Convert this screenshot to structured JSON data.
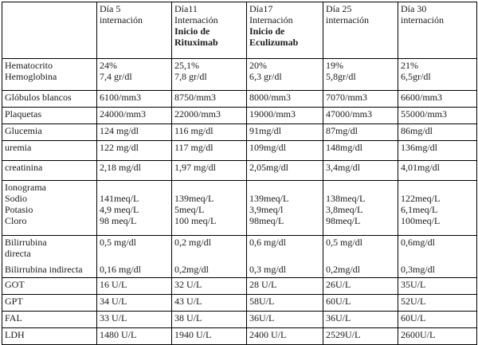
{
  "header": {
    "c1": [
      "Día 5",
      "internación"
    ],
    "c2": [
      "Día11",
      "Internación"
    ],
    "c2_bold": [
      "Inicio de",
      "Rituximab"
    ],
    "c3": [
      "Día17",
      "Internación"
    ],
    "c3_bold": [
      "Inicio de",
      "Eculizumab"
    ],
    "c4": [
      "Día 25",
      "internación"
    ],
    "c5": [
      "Día 30",
      "internación"
    ]
  },
  "rows": {
    "hto_hb": {
      "labels": [
        "Hematocrito",
        "Hemoglobina"
      ],
      "c1": [
        "24%",
        "7,4 gr/dl"
      ],
      "c2": [
        "25,1%",
        "7,8 gr/dl"
      ],
      "c3": [
        "20%",
        "6,3 gr/dl"
      ],
      "c4": [
        "19%",
        "5,8gr/dl"
      ],
      "c5": [
        "21%",
        "6,5gr/dl"
      ]
    },
    "gb": {
      "label": "Glóbulos blancos",
      "values": [
        "6100/mm3",
        "8750/mm3",
        "8000/mm3",
        "7070/mm3",
        "6600/mm3"
      ]
    },
    "plaq": {
      "label": "Plaquetas",
      "values": [
        "24000/mm3",
        "22000/mm3",
        "19000/mm3",
        "47000/mm3",
        "55000/mm3"
      ]
    },
    "glu": {
      "label": "Glucemia",
      "values": [
        "124 mg/dl",
        "116 mg/dl",
        "91mg/dl",
        "87mg/dl",
        "86mg/dl"
      ]
    },
    "urea": {
      "label": "uremia",
      "values": [
        "122 mg/dl",
        "117 mg/dl",
        "109mg/dl",
        "148mg/dl",
        "136mg/dl"
      ]
    },
    "crea": {
      "label": "creatinina",
      "values": [
        "2,18 mg/dl",
        "1,97 mg/dl",
        "2,05mg/dl",
        "3,4mg/dl",
        "4,01mg/dl"
      ]
    },
    "iono": {
      "labels": [
        "Ionograma",
        "Sodio",
        "Potasio",
        "Cloro"
      ],
      "c1": [
        "141meq/L",
        "4,9 meq/L",
        "98 meq/L"
      ],
      "c2": [
        "139meq/L",
        "5meq/L",
        "100 meq/L"
      ],
      "c3": [
        "139meq/L",
        "3,9meq/l",
        "98meq/L"
      ],
      "c4": [
        "138meq/L",
        "3,8meq/L",
        "98meq/L"
      ],
      "c5": [
        "122meq/L",
        "6,1meq/L",
        "100meq/L"
      ]
    },
    "bili": {
      "labels": [
        "Bilirrubina",
        "directa",
        "Bilirrubina indirecta"
      ],
      "c1": [
        "0,5 mg/dl",
        "0,16 mg/dl"
      ],
      "c2": [
        "0,2 mg/dl",
        "0,2mg/dl"
      ],
      "c3": [
        "0,6 mg/dl",
        "0,3 mg/dl"
      ],
      "c4": [
        "0,5 mg/dl",
        "0,2mg/dl"
      ],
      "c5": [
        "0,6mg/dl",
        "0,3mg/dl"
      ]
    },
    "got": {
      "label": "GOT",
      "values": [
        "16 U/L",
        "32 U/L",
        "28 U/L",
        "26U/L",
        "35U/L"
      ]
    },
    "gpt": {
      "label": "GPT",
      "values": [
        "34 U/L",
        "43 U/L",
        "58U/L",
        "60U/L",
        "52U/L"
      ]
    },
    "fal": {
      "label": "FAL",
      "values": [
        "33 U/L",
        "38 U/L",
        "36U/L",
        "36U/L",
        "60U/L"
      ]
    },
    "ldh": {
      "label": "LDH",
      "values": [
        "1480 U/L",
        "1940 U/L",
        "2400 U/L",
        "2529U/L",
        "2600U/L"
      ]
    }
  }
}
